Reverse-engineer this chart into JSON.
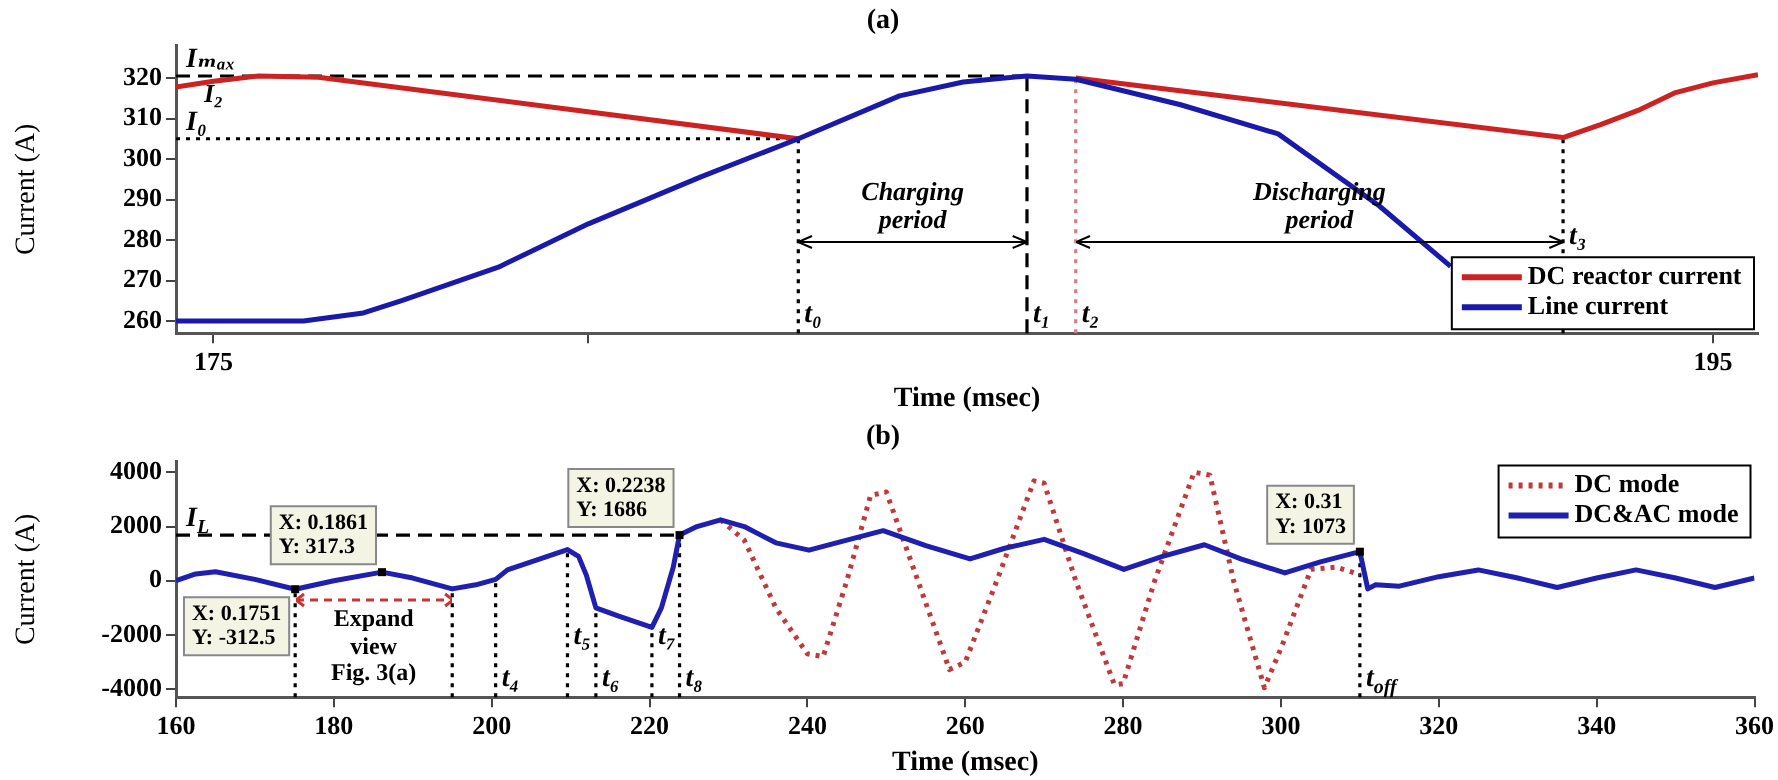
{
  "chart_data": [
    {
      "type": "line",
      "title": "(a)",
      "xlabel": "Time (msec)",
      "ylabel": "Current (A)",
      "xlim": [
        174.5,
        195.6
      ],
      "ylim": [
        257,
        328
      ],
      "xticks": [
        175,
        {
          "value": 180,
          "label": null
        },
        195
      ],
      "yticks": [
        260,
        270,
        280,
        290,
        300,
        310,
        320
      ],
      "legend": "bottom right",
      "series": [
        {
          "name": "DC reactor current",
          "color": "#cc2222",
          "x": [
            174.5,
            175,
            175.6,
            176.4,
            182.8,
            183,
            186.5,
            193.0,
            193.5,
            194,
            194.5,
            195,
            195.6
          ],
          "values": [
            317.8,
            319.2,
            320.5,
            320.2,
            305,
            null,
            320,
            305.3,
            308.5,
            312,
            316.4,
            318.8,
            320.8
          ]
        },
        {
          "name": "Line current",
          "color": "#1a1aaa",
          "x": [
            174.5,
            176.2,
            177,
            177.5,
            178.8,
            180,
            181.5,
            182.8,
            184.15,
            185,
            185.85,
            186.5,
            187.9,
            189.2,
            190.55,
            191.5
          ],
          "values": [
            260,
            260,
            262,
            265,
            273.3,
            284,
            295.6,
            305,
            315.6,
            319,
            320.5,
            319.7,
            313.4,
            306.2,
            288.4,
            273.5
          ]
        }
      ],
      "ref_lines": [
        {
          "axis": "y",
          "value": 320.5,
          "label": "Iₘₐₓ",
          "line_style": "dashed"
        },
        {
          "axis": "y",
          "value": 305,
          "label": "I₀",
          "line_style": "dotted"
        },
        {
          "axis": "x",
          "value": 182.8,
          "label": "t₀",
          "line_style": "dotted"
        },
        {
          "axis": "x",
          "value": 185.85,
          "label": "t₁",
          "line_style": "dashed"
        },
        {
          "axis": "x",
          "value": 186.5,
          "label": "t₂",
          "line_style": "dotted",
          "color": "#d08080"
        },
        {
          "axis": "x",
          "value": 193.0,
          "label": "t₃",
          "line_style": "dotted"
        }
      ],
      "annotations": [
        "I₂",
        "Charging\nperiod",
        "Discharging\nperiod"
      ]
    },
    {
      "type": "line",
      "title": "(b)",
      "xlabel": "Time (msec)",
      "ylabel": "Current (A)",
      "xlim": [
        160,
        360
      ],
      "ylim": [
        -4300,
        4400
      ],
      "xticks": [
        160,
        180,
        200,
        220,
        240,
        260,
        280,
        300,
        320,
        340,
        360
      ],
      "yticks": [
        -4000,
        -2000,
        0,
        2000,
        4000
      ],
      "legend": "top right",
      "series": [
        {
          "name": "DC mode",
          "color": "#c0393b",
          "line_style": "dotted",
          "x": [
            229,
            232,
            236,
            240,
            242,
            245,
            248,
            250,
            254,
            258,
            260,
            264,
            268.7,
            270,
            274,
            278.9,
            280,
            284,
            289,
            291,
            294,
            297.9,
            300,
            303.8,
            307,
            310
          ],
          "values": [
            2250,
            1500,
            -1000,
            -2700,
            -2800,
            0,
            3150,
            3280,
            0,
            -3280,
            -3000,
            0,
            3690,
            3600,
            0,
            -3840,
            -3800,
            0,
            4010,
            3900,
            0,
            -3950,
            -2500,
            420,
            500,
            230
          ]
        },
        {
          "name": "DC&AC mode",
          "color": "#1f1fb0",
          "x": [
            160,
            162.5,
            165,
            170,
            175.1,
            180,
            186.1,
            190,
            195,
            198,
            200.5,
            202,
            205,
            209.6,
            211,
            212,
            213.2,
            216,
            220.3,
            221.5,
            223,
            223.8,
            226,
            229,
            232,
            236,
            240.2,
            245,
            249.6,
            255,
            260.6,
            265,
            270,
            275,
            280.1,
            285,
            290.3,
            295,
            300.5,
            305,
            310,
            311,
            312,
            315,
            320,
            325,
            330,
            335,
            340,
            345,
            350,
            355,
            360
          ],
          "values": [
            0,
            250,
            330,
            50,
            -312.5,
            0,
            317.3,
            100,
            -300,
            -150,
            50,
            400,
            700,
            1150,
            900,
            200,
            -1000,
            -1300,
            -1720,
            -1000,
            500,
            1686,
            2000,
            2250,
            2000,
            1400,
            1130,
            1500,
            1850,
            1300,
            810,
            1200,
            1530,
            1000,
            420,
            900,
            1330,
            800,
            290,
            700,
            1073,
            -300,
            -150,
            -200,
            150,
            400,
            100,
            -250,
            100,
            400,
            100,
            -250,
            100
          ]
        }
      ],
      "ref_lines": [
        {
          "axis": "y",
          "value": 1686,
          "label": "I$_{L}$",
          "line_style": "dashed"
        },
        {
          "axis": "x",
          "value": 175.1,
          "line_style": "dotted"
        },
        {
          "axis": "x",
          "value": 195,
          "line_style": "dotted"
        },
        {
          "axis": "x",
          "value": 200.5,
          "label": "t₄",
          "line_style": "dotted"
        },
        {
          "axis": "x",
          "value": 209.6,
          "label": "t₅",
          "line_style": "dotted"
        },
        {
          "axis": "x",
          "value": 213.2,
          "label": "t₆",
          "line_style": "dotted"
        },
        {
          "axis": "x",
          "value": 220.3,
          "label": "t₇",
          "line_style": "dotted"
        },
        {
          "axis": "x",
          "value": 223.8,
          "label": "t₈",
          "line_style": "dotted"
        },
        {
          "axis": "x",
          "value": 310,
          "label": "t$_{off}$",
          "line_style": "dotted"
        }
      ],
      "annotations": [
        "Expand\nview\nFig. 3(a)",
        {
          "text": "X: 0.1751\nY: -312.5",
          "x": 175.1,
          "y": -312.5
        },
        {
          "text": "X: 0.1861\nY: 317.3",
          "x": 186.1,
          "y": 317.3
        },
        {
          "text": "X: 0.2238\nY: 1686",
          "x": 223.8,
          "y": 1686
        },
        {
          "text": "X: 0.31\nY: 1073",
          "x": 310,
          "y": 1073
        }
      ]
    }
  ]
}
